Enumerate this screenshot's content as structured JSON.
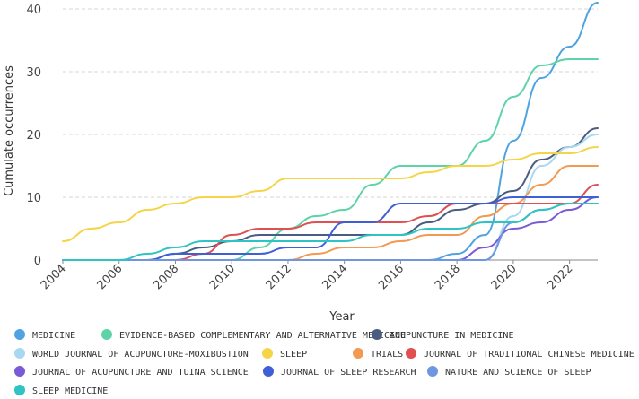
{
  "chart_data": {
    "type": "line",
    "title": "",
    "xlabel": "Year",
    "ylabel": "Cumulate occurrences",
    "xlim": [
      2004,
      2023
    ],
    "ylim": [
      0,
      40
    ],
    "x_ticks": [
      "2004",
      "2006",
      "2008",
      "2010",
      "2012",
      "2014",
      "2016",
      "2018",
      "2020",
      "2022"
    ],
    "y_ticks": [
      "0",
      "10",
      "20",
      "30",
      "40"
    ],
    "grid": "horizontal-dashed",
    "legend_position": "bottom",
    "x": [
      2004,
      2005,
      2006,
      2007,
      2008,
      2009,
      2010,
      2011,
      2012,
      2013,
      2014,
      2015,
      2016,
      2017,
      2018,
      2019,
      2020,
      2021,
      2022,
      2023
    ],
    "series": [
      {
        "name": "MEDICINE",
        "color": "#4fa3e0",
        "values": [
          0,
          0,
          0,
          0,
          0,
          0,
          0,
          0,
          0,
          0,
          0,
          0,
          0,
          0,
          1,
          4,
          19,
          29,
          34,
          41
        ]
      },
      {
        "name": "EVIDENCE-BASED COMPLEMENTARY AND ALTERNATIVE MEDICINE",
        "color": "#5fd3a8",
        "values": [
          0,
          0,
          0,
          0,
          0,
          0,
          0,
          2,
          5,
          7,
          8,
          12,
          15,
          15,
          15,
          19,
          26,
          31,
          32,
          32
        ]
      },
      {
        "name": "ACUPUNCTURE IN MEDICINE",
        "color": "#4a5d80",
        "values": [
          0,
          0,
          0,
          0,
          1,
          2,
          3,
          4,
          4,
          4,
          4,
          4,
          4,
          6,
          8,
          9,
          11,
          16,
          18,
          21
        ]
      },
      {
        "name": "WORLD JOURNAL OF ACUPUNCTURE-MOXIBUSTION",
        "color": "#a8d8f0",
        "values": [
          0,
          0,
          0,
          0,
          0,
          0,
          0,
          0,
          0,
          0,
          0,
          0,
          0,
          0,
          0,
          0,
          7,
          15,
          18,
          20
        ]
      },
      {
        "name": "SLEEP",
        "color": "#f5d547",
        "values": [
          3,
          5,
          6,
          8,
          9,
          10,
          10,
          11,
          13,
          13,
          13,
          13,
          13,
          14,
          15,
          15,
          16,
          17,
          17,
          18
        ]
      },
      {
        "name": "TRIALS",
        "color": "#f29a52",
        "values": [
          0,
          0,
          0,
          0,
          0,
          0,
          0,
          0,
          0,
          1,
          2,
          2,
          3,
          4,
          4,
          7,
          9,
          12,
          15,
          15
        ]
      },
      {
        "name": "JOURNAL OF TRADITIONAL CHINESE MEDICINE",
        "color": "#e05050",
        "values": [
          0,
          0,
          0,
          0,
          0,
          1,
          4,
          5,
          5,
          6,
          6,
          6,
          6,
          7,
          9,
          9,
          9,
          9,
          9,
          12
        ]
      },
      {
        "name": "JOURNAL OF ACUPUNCTURE AND TUINA SCIENCE",
        "color": "#7a5ad6",
        "values": [
          0,
          0,
          0,
          0,
          0,
          0,
          0,
          0,
          0,
          0,
          0,
          0,
          0,
          0,
          0,
          2,
          5,
          6,
          8,
          10
        ]
      },
      {
        "name": "JOURNAL OF SLEEP RESEARCH",
        "color": "#3f5fd6",
        "values": [
          0,
          0,
          0,
          0,
          1,
          1,
          1,
          1,
          2,
          2,
          6,
          6,
          9,
          9,
          9,
          9,
          10,
          10,
          10,
          10
        ]
      },
      {
        "name": "NATURE AND SCIENCE OF SLEEP",
        "color": "#6f96e0",
        "values": [
          0,
          0,
          0,
          0,
          0,
          0,
          0,
          0,
          0,
          0,
          0,
          0,
          0,
          0,
          0,
          0,
          6,
          8,
          9,
          9
        ]
      },
      {
        "name": "SLEEP MEDICINE",
        "color": "#2ec4c4",
        "values": [
          0,
          0,
          0,
          1,
          2,
          3,
          3,
          3,
          3,
          3,
          3,
          4,
          4,
          5,
          5,
          6,
          6,
          8,
          9,
          9
        ]
      }
    ]
  }
}
